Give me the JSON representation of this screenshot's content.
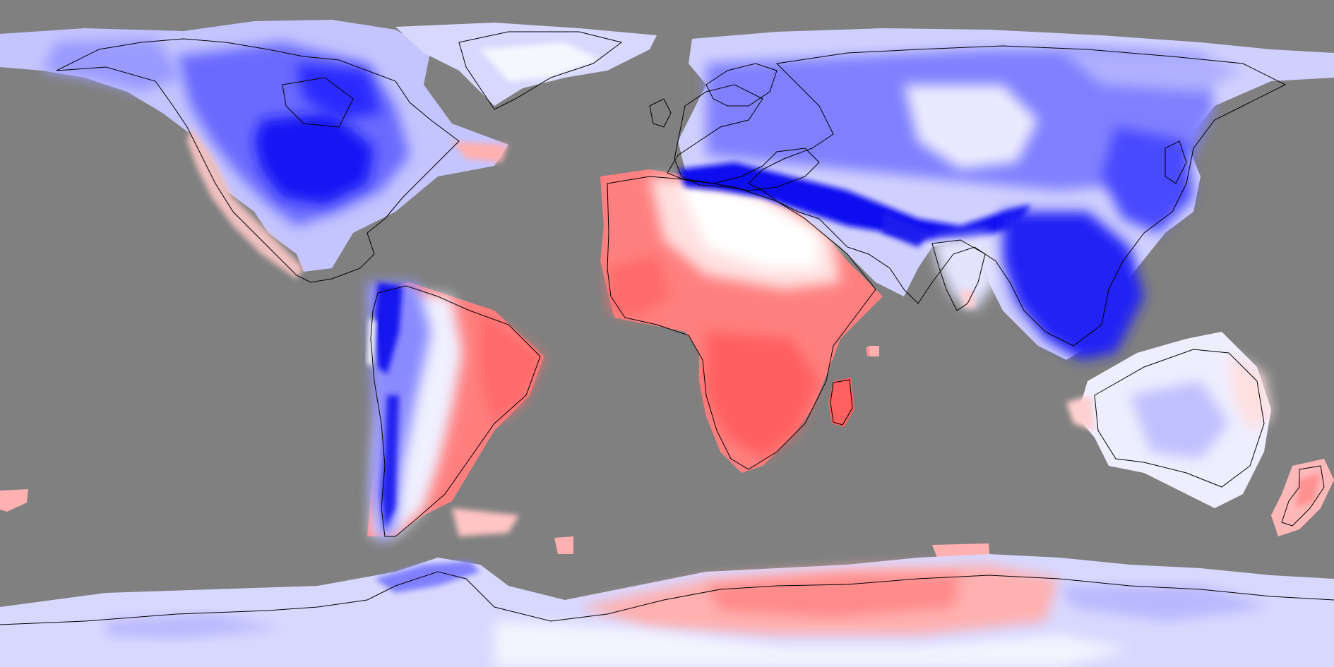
{
  "map": {
    "projection": "equirectangular",
    "background_color": "#808080",
    "coastline_color": "#000000",
    "color_scale": {
      "type": "diverging",
      "negative_color": "#0000ff",
      "neutral_color": "#ffffff",
      "positive_color": "#ff4040"
    },
    "regions": [
      {
        "name": "north-america",
        "tone": "strong-blue"
      },
      {
        "name": "greenland",
        "tone": "light-blue"
      },
      {
        "name": "south-america-west",
        "tone": "strong-blue"
      },
      {
        "name": "south-america-east",
        "tone": "red"
      },
      {
        "name": "africa",
        "tone": "red"
      },
      {
        "name": "madagascar",
        "tone": "red"
      },
      {
        "name": "europe",
        "tone": "blue"
      },
      {
        "name": "asia-north",
        "tone": "blue"
      },
      {
        "name": "himalaya-mediterranean-band",
        "tone": "strong-blue"
      },
      {
        "name": "southeast-asia",
        "tone": "strong-blue"
      },
      {
        "name": "india",
        "tone": "light-blue"
      },
      {
        "name": "australia",
        "tone": "light-blue"
      },
      {
        "name": "new-zealand",
        "tone": "light-red"
      },
      {
        "name": "antarctica-west",
        "tone": "light-blue"
      },
      {
        "name": "antarctica-east",
        "tone": "light-red"
      }
    ]
  }
}
